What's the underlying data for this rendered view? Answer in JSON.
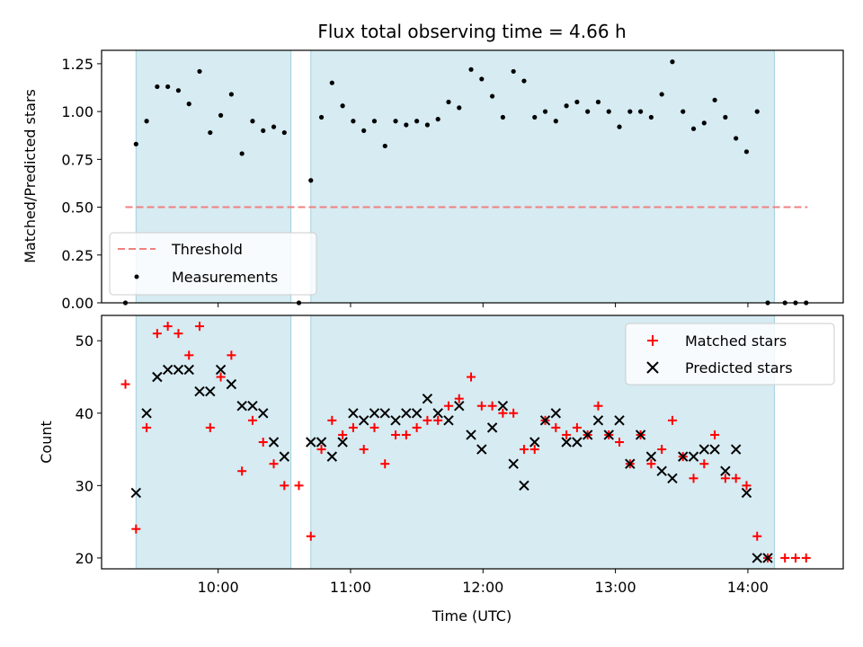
{
  "chart_data": [
    {
      "type": "scatter",
      "panel": "top",
      "title": "Flux total observing time = 4.66 h",
      "ylabel": "Matched/Predicted stars",
      "xlabel": "",
      "ylim": [
        0.0,
        1.32
      ],
      "xlim": [
        9.12,
        14.72
      ],
      "yticks": [
        0.0,
        0.25,
        0.5,
        0.75,
        1.0,
        1.25
      ],
      "ytick_labels": [
        "0.00",
        "0.25",
        "0.50",
        "0.75",
        "1.00",
        "1.25"
      ],
      "xticks": [
        10,
        11,
        12,
        13,
        14
      ],
      "shaded_intervals": [
        [
          9.38,
          10.55
        ],
        [
          10.7,
          14.2
        ]
      ],
      "threshold": {
        "name": "Threshold",
        "value": 0.5,
        "x_range": [
          9.3,
          14.45
        ],
        "color": "#f08080"
      },
      "series": [
        {
          "name": "Measurements",
          "color": "#000000",
          "x": [
            9.3,
            9.38,
            9.46,
            9.54,
            9.62,
            9.7,
            9.78,
            9.86,
            9.94,
            10.02,
            10.1,
            10.18,
            10.26,
            10.34,
            10.42,
            10.5,
            10.61,
            10.7,
            10.78,
            10.86,
            10.94,
            11.02,
            11.1,
            11.18,
            11.26,
            11.34,
            11.42,
            11.5,
            11.58,
            11.66,
            11.74,
            11.82,
            11.91,
            11.99,
            12.07,
            12.15,
            12.23,
            12.31,
            12.39,
            12.47,
            12.55,
            12.63,
            12.71,
            12.79,
            12.87,
            12.95,
            13.03,
            13.11,
            13.19,
            13.27,
            13.35,
            13.43,
            13.51,
            13.59,
            13.67,
            13.75,
            13.83,
            13.91,
            13.99,
            14.07,
            14.15,
            14.28,
            14.36,
            14.44
          ],
          "values": [
            0.0,
            0.83,
            0.95,
            1.13,
            1.13,
            1.11,
            1.04,
            1.21,
            0.89,
            0.98,
            1.09,
            0.78,
            0.95,
            0.9,
            0.92,
            0.89,
            0.0,
            0.64,
            0.97,
            1.15,
            1.03,
            0.95,
            0.9,
            0.95,
            0.82,
            0.95,
            0.93,
            0.95,
            0.93,
            0.96,
            1.05,
            1.02,
            1.22,
            1.17,
            1.08,
            0.97,
            1.21,
            1.16,
            0.97,
            1.0,
            0.95,
            1.03,
            1.05,
            1.0,
            1.05,
            1.0,
            0.92,
            1.0,
            1.0,
            0.97,
            1.09,
            1.26,
            1.0,
            0.91,
            0.94,
            1.06,
            0.97,
            0.86,
            0.79,
            1.0,
            0.0,
            0.0,
            0.0,
            0.0
          ]
        }
      ],
      "legend": {
        "placement": "lower-left",
        "entries": [
          "Threshold",
          "Measurements"
        ]
      }
    },
    {
      "type": "scatter",
      "panel": "bottom",
      "title": "",
      "ylabel": "Count",
      "xlabel": "Time (UTC)",
      "ylim": [
        18.5,
        53.5
      ],
      "xlim": [
        9.12,
        14.72
      ],
      "yticks": [
        20,
        30,
        40,
        50
      ],
      "ytick_labels": [
        "20",
        "30",
        "40",
        "50"
      ],
      "xticks": [
        10,
        11,
        12,
        13,
        14
      ],
      "xtick_labels": [
        "10:00",
        "11:00",
        "12:00",
        "13:00",
        "14:00"
      ],
      "shaded_intervals": [
        [
          9.38,
          10.55
        ],
        [
          10.7,
          14.2
        ]
      ],
      "series": [
        {
          "name": "Matched stars",
          "marker": "plus",
          "color": "#ff0000",
          "x": [
            9.3,
            9.38,
            9.46,
            9.54,
            9.62,
            9.7,
            9.78,
            9.86,
            9.94,
            10.02,
            10.1,
            10.18,
            10.26,
            10.34,
            10.42,
            10.5,
            10.61,
            10.7,
            10.78,
            10.86,
            10.94,
            11.02,
            11.1,
            11.18,
            11.26,
            11.34,
            11.42,
            11.5,
            11.58,
            11.66,
            11.74,
            11.82,
            11.91,
            11.99,
            12.07,
            12.15,
            12.23,
            12.31,
            12.39,
            12.47,
            12.55,
            12.63,
            12.71,
            12.79,
            12.87,
            12.95,
            13.03,
            13.11,
            13.19,
            13.27,
            13.35,
            13.43,
            13.51,
            13.59,
            13.67,
            13.75,
            13.83,
            13.91,
            13.99,
            14.07,
            14.15,
            14.28,
            14.36,
            14.44
          ],
          "values": [
            44,
            24,
            38,
            51,
            52,
            51,
            48,
            52,
            38,
            45,
            48,
            32,
            39,
            36,
            33,
            30,
            30,
            23,
            35,
            39,
            37,
            38,
            35,
            38,
            33,
            37,
            37,
            38,
            39,
            39,
            41,
            42,
            45,
            41,
            41,
            40,
            40,
            35,
            35,
            39,
            38,
            37,
            38,
            37,
            41,
            37,
            36,
            33,
            37,
            33,
            35,
            39,
            34,
            31,
            33,
            37,
            31,
            31,
            30,
            23,
            20,
            20,
            20,
            20
          ]
        },
        {
          "name": "Predicted stars",
          "marker": "x",
          "color": "#000000",
          "x": [
            9.38,
            9.46,
            9.54,
            9.62,
            9.7,
            9.78,
            9.86,
            9.94,
            10.02,
            10.1,
            10.18,
            10.26,
            10.34,
            10.42,
            10.5,
            10.7,
            10.78,
            10.86,
            10.94,
            11.02,
            11.1,
            11.18,
            11.26,
            11.34,
            11.42,
            11.5,
            11.58,
            11.66,
            11.74,
            11.82,
            11.91,
            11.99,
            12.07,
            12.15,
            12.23,
            12.31,
            12.39,
            12.47,
            12.55,
            12.63,
            12.71,
            12.79,
            12.87,
            12.95,
            13.03,
            13.11,
            13.19,
            13.27,
            13.35,
            13.43,
            13.51,
            13.59,
            13.67,
            13.75,
            13.83,
            13.91,
            13.99,
            14.07,
            14.15
          ],
          "values": [
            29,
            40,
            45,
            46,
            46,
            46,
            43,
            43,
            46,
            44,
            41,
            41,
            40,
            36,
            34,
            36,
            36,
            34,
            36,
            40,
            39,
            40,
            40,
            39,
            40,
            40,
            42,
            40,
            39,
            41,
            37,
            35,
            38,
            41,
            33,
            30,
            36,
            39,
            40,
            36,
            36,
            37,
            39,
            37,
            39,
            33,
            37,
            34,
            32,
            31,
            34,
            34,
            35,
            35,
            32,
            35,
            29,
            20,
            20
          ]
        }
      ],
      "legend": {
        "placement": "top-right",
        "entries": [
          "Matched stars",
          "Predicted stars"
        ]
      }
    }
  ]
}
